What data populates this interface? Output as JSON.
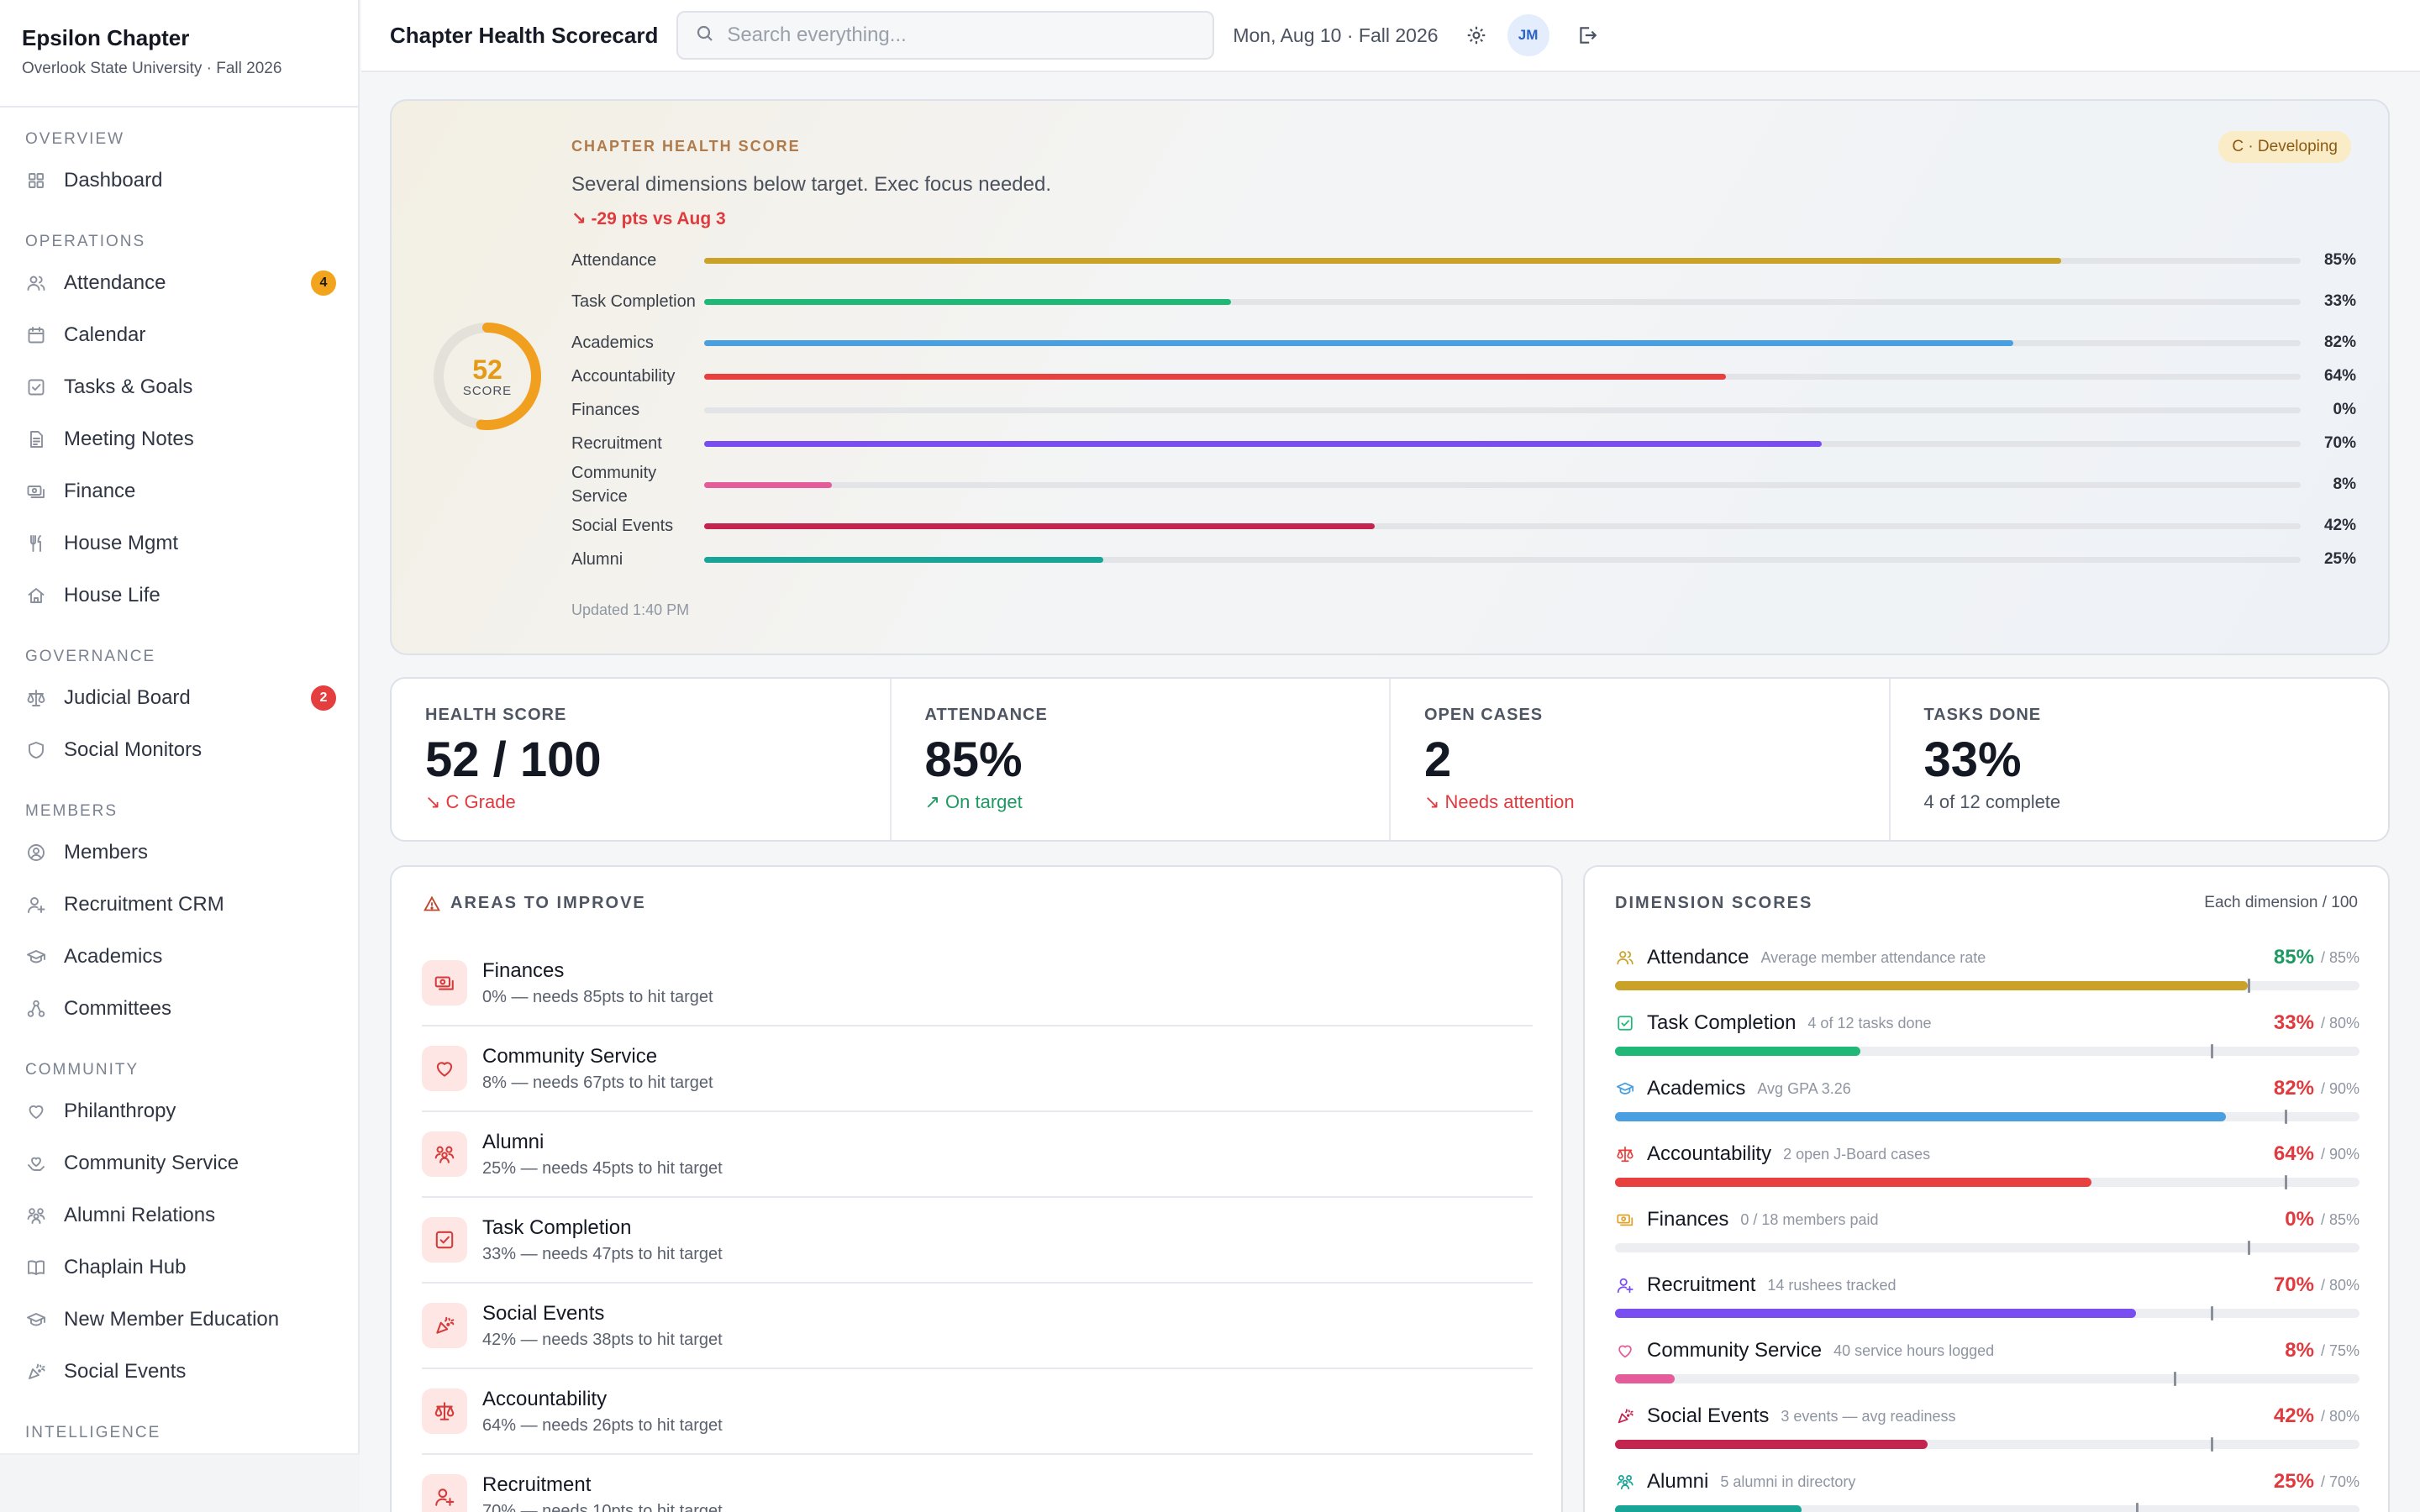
{
  "sidebar": {
    "chapter_name": "Epsilon Chapter",
    "chapter_sub": "Overlook State University · Fall 2026",
    "sections": [
      {
        "title": "OVERVIEW",
        "items": [
          {
            "label": "Dashboard",
            "icon": "dashboard-icon"
          }
        ]
      },
      {
        "title": "OPERATIONS",
        "items": [
          {
            "label": "Attendance",
            "icon": "users-icon",
            "badge": "4",
            "badge_color": "#f2a51c"
          },
          {
            "label": "Calendar",
            "icon": "calendar-icon"
          },
          {
            "label": "Tasks & Goals",
            "icon": "checkbox-icon"
          },
          {
            "label": "Meeting Notes",
            "icon": "document-icon"
          },
          {
            "label": "Finance",
            "icon": "cash-icon"
          },
          {
            "label": "House Mgmt",
            "icon": "utensils-icon"
          },
          {
            "label": "House Life",
            "icon": "home-icon"
          }
        ]
      },
      {
        "title": "GOVERNANCE",
        "items": [
          {
            "label": "Judicial Board",
            "icon": "scales-icon",
            "badge": "2",
            "badge_color": "#e53e3e"
          },
          {
            "label": "Social Monitors",
            "icon": "shield-icon"
          }
        ]
      },
      {
        "title": "MEMBERS",
        "items": [
          {
            "label": "Members",
            "icon": "user-circle-icon"
          },
          {
            "label": "Recruitment CRM",
            "icon": "user-plus-icon"
          },
          {
            "label": "Academics",
            "icon": "graduation-cap-icon"
          },
          {
            "label": "Committees",
            "icon": "network-icon"
          }
        ]
      },
      {
        "title": "COMMUNITY",
        "items": [
          {
            "label": "Philanthropy",
            "icon": "heart-icon"
          },
          {
            "label": "Community Service",
            "icon": "hand-heart-icon"
          },
          {
            "label": "Alumni Relations",
            "icon": "people-icon"
          },
          {
            "label": "Chaplain Hub",
            "icon": "book-icon"
          },
          {
            "label": "New Member Education",
            "icon": "graduation-cap-icon"
          },
          {
            "label": "Social Events",
            "icon": "party-icon"
          }
        ]
      },
      {
        "title": "INTELLIGENCE",
        "items": []
      }
    ]
  },
  "topbar": {
    "title": "Chapter Health Scorecard",
    "search_placeholder": "Search everything...",
    "date": "Mon, Aug 10 · Fall 2026",
    "avatar_initials": "JM"
  },
  "hero": {
    "score": "52",
    "score_value": 52,
    "score_label": "SCORE",
    "kicker": "CHAPTER HEALTH SCORE",
    "message": "Several dimensions below target. Exec focus needed.",
    "delta": "-29 pts vs Aug 3",
    "grade_pill": "C · Developing",
    "updated": "Updated 1:40 PM",
    "ring_color": "#f0a01e",
    "bars": [
      {
        "label": "Attendance",
        "value": 85,
        "pct": "85%",
        "color": "#c9a227"
      },
      {
        "label": "Task Completion",
        "value": 33,
        "pct": "33%",
        "color": "#1fb877",
        "tall": true
      },
      {
        "label": "Academics",
        "value": 82,
        "pct": "82%",
        "color": "#4a9fe0"
      },
      {
        "label": "Accountability",
        "value": 64,
        "pct": "64%",
        "color": "#e8403f"
      },
      {
        "label": "Finances",
        "value": 0,
        "pct": "0%",
        "color": "#e0a32a"
      },
      {
        "label": "Recruitment",
        "value": 70,
        "pct": "70%",
        "color": "#7a4df0"
      },
      {
        "label": "Community Service",
        "value": 8,
        "pct": "8%",
        "color": "#e45c9a",
        "tall": true
      },
      {
        "label": "Social Events",
        "value": 42,
        "pct": "42%",
        "color": "#c4254e"
      },
      {
        "label": "Alumni",
        "value": 25,
        "pct": "25%",
        "color": "#16a596"
      }
    ]
  },
  "stats": [
    {
      "label": "HEALTH SCORE",
      "value": "52 / 100",
      "sub": "C Grade",
      "sub_color": "#e0393e",
      "trend": "down"
    },
    {
      "label": "ATTENDANCE",
      "value": "85%",
      "sub": "On target",
      "sub_color": "#1d9a62",
      "trend": "up"
    },
    {
      "label": "OPEN CASES",
      "value": "2",
      "sub": "Needs attention",
      "sub_color": "#e0393e",
      "trend": "down"
    },
    {
      "label": "TASKS DONE",
      "value": "33%",
      "sub": "4 of 12 complete",
      "sub_color": "#4e5563",
      "trend": "none"
    }
  ],
  "areas": {
    "title": "AREAS TO IMPROVE",
    "items": [
      {
        "name": "Finances",
        "desc": "0% — needs 85pts to hit target",
        "icon": "cash-icon"
      },
      {
        "name": "Community Service",
        "desc": "8% — needs 67pts to hit target",
        "icon": "heart-icon"
      },
      {
        "name": "Alumni",
        "desc": "25% — needs 45pts to hit target",
        "icon": "people-icon"
      },
      {
        "name": "Task Completion",
        "desc": "33% — needs 47pts to hit target",
        "icon": "checkbox-icon"
      },
      {
        "name": "Social Events",
        "desc": "42% — needs 38pts to hit target",
        "icon": "party-icon"
      },
      {
        "name": "Accountability",
        "desc": "64% — needs 26pts to hit target",
        "icon": "scales-icon"
      },
      {
        "name": "Recruitment",
        "desc": "70% — needs 10pts to hit target",
        "icon": "user-plus-icon"
      }
    ]
  },
  "dimensions": {
    "title": "DIMENSION SCORES",
    "note": "Each dimension / 100",
    "items": [
      {
        "name": "Attendance",
        "desc": "Average member attendance rate",
        "pct": "85%",
        "target": "/ 85%",
        "value": 85,
        "target_value": 85,
        "color": "#c9a227",
        "pct_color": "#1d9a62",
        "icon": "users-icon"
      },
      {
        "name": "Task Completion",
        "desc": "4 of 12 tasks done",
        "pct": "33%",
        "target": "/ 80%",
        "value": 33,
        "target_value": 80,
        "color": "#1fb877",
        "pct_color": "#e0393e",
        "icon": "checkbox-icon"
      },
      {
        "name": "Academics",
        "desc": "Avg GPA 3.26",
        "pct": "82%",
        "target": "/ 90%",
        "value": 82,
        "target_value": 90,
        "color": "#4a9fe0",
        "pct_color": "#e0393e",
        "icon": "graduation-cap-icon"
      },
      {
        "name": "Accountability",
        "desc": "2 open J-Board cases",
        "pct": "64%",
        "target": "/ 90%",
        "value": 64,
        "target_value": 90,
        "color": "#e8403f",
        "pct_color": "#e0393e",
        "icon": "scales-icon"
      },
      {
        "name": "Finances",
        "desc": "0 / 18 members paid",
        "pct": "0%",
        "target": "/ 85%",
        "value": 0,
        "target_value": 85,
        "color": "#e0a32a",
        "pct_color": "#e0393e",
        "icon": "cash-icon"
      },
      {
        "name": "Recruitment",
        "desc": "14 rushees tracked",
        "pct": "70%",
        "target": "/ 80%",
        "value": 70,
        "target_value": 80,
        "color": "#7a4df0",
        "pct_color": "#e0393e",
        "icon": "user-plus-icon"
      },
      {
        "name": "Community Service",
        "desc": "40 service hours logged",
        "pct": "8%",
        "target": "/ 75%",
        "value": 8,
        "target_value": 75,
        "color": "#e45c9a",
        "pct_color": "#e0393e",
        "icon": "heart-icon"
      },
      {
        "name": "Social Events",
        "desc": "3 events — avg readiness",
        "pct": "42%",
        "target": "/ 80%",
        "value": 42,
        "target_value": 80,
        "color": "#c4254e",
        "pct_color": "#e0393e",
        "icon": "party-icon"
      },
      {
        "name": "Alumni",
        "desc": "5 alumni in directory",
        "pct": "25%",
        "target": "/ 70%",
        "value": 25,
        "target_value": 70,
        "color": "#16a596",
        "pct_color": "#e0393e",
        "icon": "people-icon"
      }
    ]
  }
}
